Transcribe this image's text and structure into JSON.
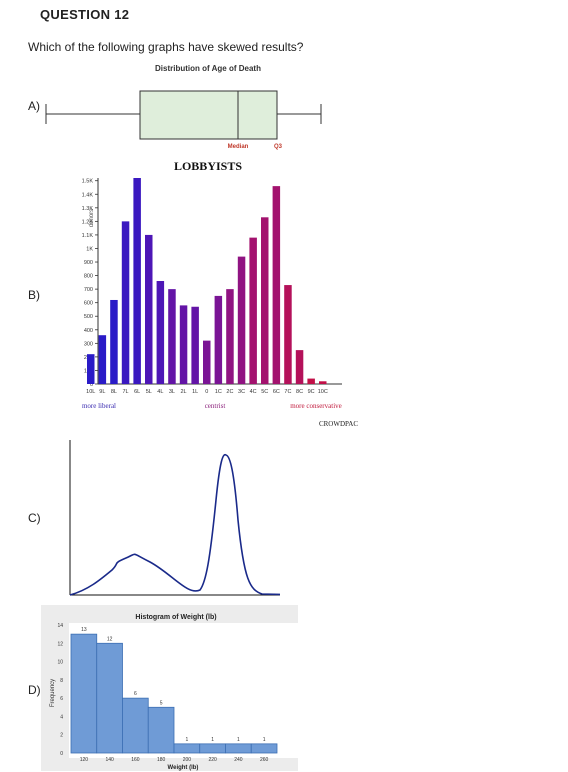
{
  "question": {
    "title": "QUESTION 12",
    "text": "Which of the following graphs have skewed results?"
  },
  "options": {
    "a": "A)",
    "b": "B)",
    "c": "C)",
    "d": "D)"
  },
  "chart_data": [
    {
      "type": "boxplot",
      "title": "Distribution of Age of Death",
      "labels": {
        "median": "Median",
        "q3": "Q3"
      },
      "summary": {
        "min": 0,
        "q1": 0.42,
        "median": 0.84,
        "q3": 1.12,
        "max": 1.38
      }
    },
    {
      "type": "bar",
      "title": "LOBBYISTS",
      "ylabel": "donors",
      "categories": [
        "10L",
        "9L",
        "8L",
        "7L",
        "6L",
        "5L",
        "4L",
        "3L",
        "2L",
        "1L",
        "0",
        "1C",
        "2C",
        "3C",
        "4C",
        "5C",
        "6C",
        "7C",
        "8C",
        "9C",
        "10C"
      ],
      "values": [
        220,
        360,
        620,
        1200,
        1520,
        1100,
        760,
        700,
        580,
        570,
        320,
        650,
        700,
        940,
        1080,
        1230,
        1460,
        730,
        250,
        40,
        20
      ],
      "yticks": [
        "0",
        "100",
        "200",
        "300",
        "400",
        "500",
        "600",
        "700",
        "800",
        "900",
        "1K",
        "1.1K",
        "1.2K",
        "1.3K",
        "1.4K",
        "1.5K"
      ],
      "ylim": [
        0,
        1520
      ],
      "xannotations": [
        "more liberal",
        "centrist",
        "more conservative"
      ],
      "source": "CROWDPAC",
      "colors": [
        "#2a1bc7",
        "#3a18c0",
        "#4d16b6",
        "#6314a6",
        "#7a1495",
        "#901382",
        "#a3126e",
        "#b4115a",
        "#c21048"
      ]
    },
    {
      "type": "line",
      "title": "",
      "description": "bimodal density curve",
      "x": [
        0,
        0.1,
        0.2,
        0.3,
        0.4,
        0.5,
        0.55,
        0.6,
        0.7,
        0.8,
        0.85,
        0.9,
        1.0
      ],
      "y": [
        0,
        0.1,
        0.3,
        0.2,
        0.08,
        0.3,
        0.85,
        1.0,
        0.4,
        0.05,
        0.01,
        0,
        0
      ]
    },
    {
      "type": "bar",
      "title": "Histogram of Weight (lb)",
      "xlabel": "Weight (lb)",
      "ylabel": "Frequency",
      "categories": [
        "110-130",
        "130-150",
        "150-170",
        "170-190",
        "190-210",
        "210-230",
        "230-250",
        "250-270"
      ],
      "values": [
        13,
        12,
        6,
        5,
        1,
        1,
        1,
        1
      ],
      "value_labels": [
        "13",
        "12",
        "6",
        "5",
        "1",
        "1",
        "1",
        "1"
      ],
      "xticks": [
        "120",
        "140",
        "160",
        "180",
        "200",
        "220",
        "240",
        "260"
      ],
      "yticks": [
        "0",
        "2",
        "4",
        "6",
        "8",
        "10",
        "12",
        "14"
      ],
      "ylim": [
        0,
        14
      ]
    }
  ]
}
